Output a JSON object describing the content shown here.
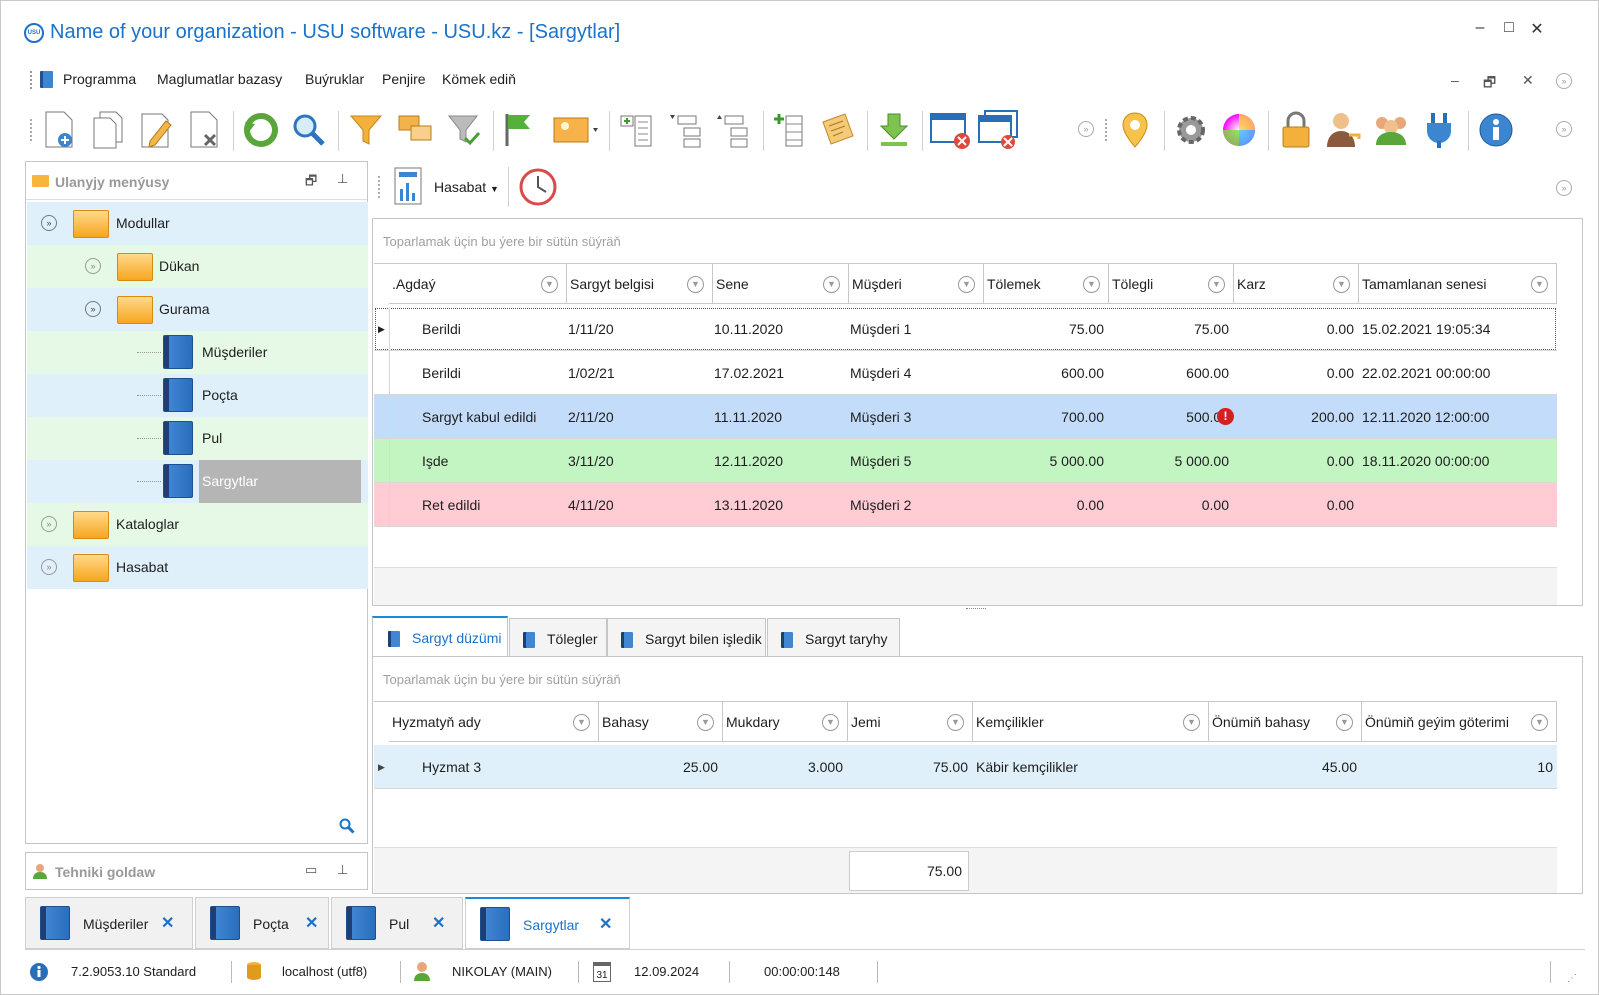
{
  "window": {
    "title": "Name of your organization - USU software - USU.kz - [Sargytlar]",
    "logo_text": "USU",
    "minimize": "–",
    "maximize": "□",
    "close": "✕"
  },
  "menu": {
    "items": [
      "Programma",
      "Maglumatlar bazasy",
      "Buýruklar",
      "Penjire",
      "Kömek ediň"
    ],
    "mdi_minimize": "–",
    "mdi_restore": "🗗",
    "mdi_close": "✕"
  },
  "toolbar": {
    "icons": [
      "new-doc-icon",
      "copy-icon",
      "edit-icon",
      "delete-icon",
      "refresh-icon",
      "search-icon",
      "filter-icon",
      "move-icon",
      "filter-check-icon",
      "flag-icon",
      "image-icon",
      "expand-icon",
      "tree-down-icon",
      "tree-up-icon",
      "add-column-icon",
      "notes-icon",
      "download-icon",
      "close-window-icon",
      "close-all-icon",
      "location-icon",
      "settings-icon",
      "color-wheel-icon",
      "lock-icon",
      "user-key-icon",
      "users-icon",
      "plug-icon",
      "info-icon"
    ]
  },
  "side_panel": {
    "title": "Ulanyjy menýusy",
    "tree": [
      {
        "label": "Modullar"
      },
      {
        "label": "Dükan"
      },
      {
        "label": "Gurama"
      },
      {
        "label": "Müşderiler"
      },
      {
        "label": "Poçta"
      },
      {
        "label": "Pul"
      },
      {
        "label": "Sargytlar"
      },
      {
        "label": "Kataloglar"
      },
      {
        "label": "Hasabat"
      }
    ]
  },
  "tech_panel": {
    "title": "Tehniki goldaw"
  },
  "report_bar": {
    "label": "Hasabat"
  },
  "orders": {
    "group_hint": "Toparlamak üçin bu ýere bir sütün süýräň",
    "columns": [
      ".Agdaý",
      "Sargyt belgisi",
      "Sene",
      "Müşderi",
      "Tölemek",
      "Tölegli",
      "Karz",
      "Tamamlanan senesi"
    ],
    "rows": [
      {
        "status": "Berildi",
        "number": "1/11/20",
        "date": "10.11.2020",
        "customer": "Müşderi 1",
        "to_pay": "75.00",
        "paid": "75.00",
        "debt": "0.00",
        "completed": "15.02.2021 19:05:34"
      },
      {
        "status": "Berildi",
        "number": "1/02/21",
        "date": "17.02.2021",
        "customer": "Müşderi 4",
        "to_pay": "600.00",
        "paid": "600.00",
        "debt": "0.00",
        "completed": "22.02.2021 00:00:00"
      },
      {
        "status": "Sargyt kabul edildi",
        "number": "2/11/20",
        "date": "11.11.2020",
        "customer": "Müşderi 3",
        "to_pay": "700.00",
        "paid": "500.00",
        "debt": "200.00",
        "completed": "12.11.2020 12:00:00"
      },
      {
        "status": "Işde",
        "number": "3/11/20",
        "date": "12.11.2020",
        "customer": "Müşderi 5",
        "to_pay": "5 000.00",
        "paid": "5 000.00",
        "debt": "0.00",
        "completed": "18.11.2020 00:00:00"
      },
      {
        "status": "Ret edildi",
        "number": "4/11/20",
        "date": "13.11.2020",
        "customer": "Müşderi 2",
        "to_pay": "0.00",
        "paid": "0.00",
        "debt": "0.00",
        "completed": ""
      }
    ],
    "row_colors": [
      "#ffffff",
      "#ffffff",
      "#c3dcfa",
      "#c3f5c3",
      "#ffccd3"
    ],
    "warning_icon": "!"
  },
  "detail_tabs": [
    "Sargyt düzümi",
    "Tölegler",
    "Sargyt bilen işledik",
    "Sargyt taryhy"
  ],
  "details": {
    "group_hint": "Toparlamak üçin bu ýere bir sütün süýräň",
    "columns": [
      "Hyzmatyň ady",
      "Bahasy",
      "Mukdary",
      "Jemi",
      "Kemçilikler",
      "Önümiň bahasy",
      "Önümiň geýim göterimi"
    ],
    "rows": [
      {
        "name": "Hyzmat 3",
        "price": "25.00",
        "qty": "3.000",
        "total": "75.00",
        "defects": "Käbir kemçilikler",
        "product_price": "45.00",
        "wear": "10"
      }
    ],
    "footer_total": "75.00"
  },
  "doc_tabs": [
    {
      "label": "Müşderiler"
    },
    {
      "label": "Poçta"
    },
    {
      "label": "Pul"
    },
    {
      "label": "Sargytlar"
    }
  ],
  "status": {
    "version": "7.2.9053.10 Standard",
    "db": "localhost (utf8)",
    "user": "NIKOLAY (MAIN)",
    "calendar_day": "31",
    "date": "12.09.2024",
    "timer": "00:00:00:148"
  },
  "colors": {
    "accent": "#1b72c9",
    "tree_blue": "#dff0fb",
    "tree_green": "#e6f8e6",
    "selected_tree": "#b5b5b5"
  }
}
